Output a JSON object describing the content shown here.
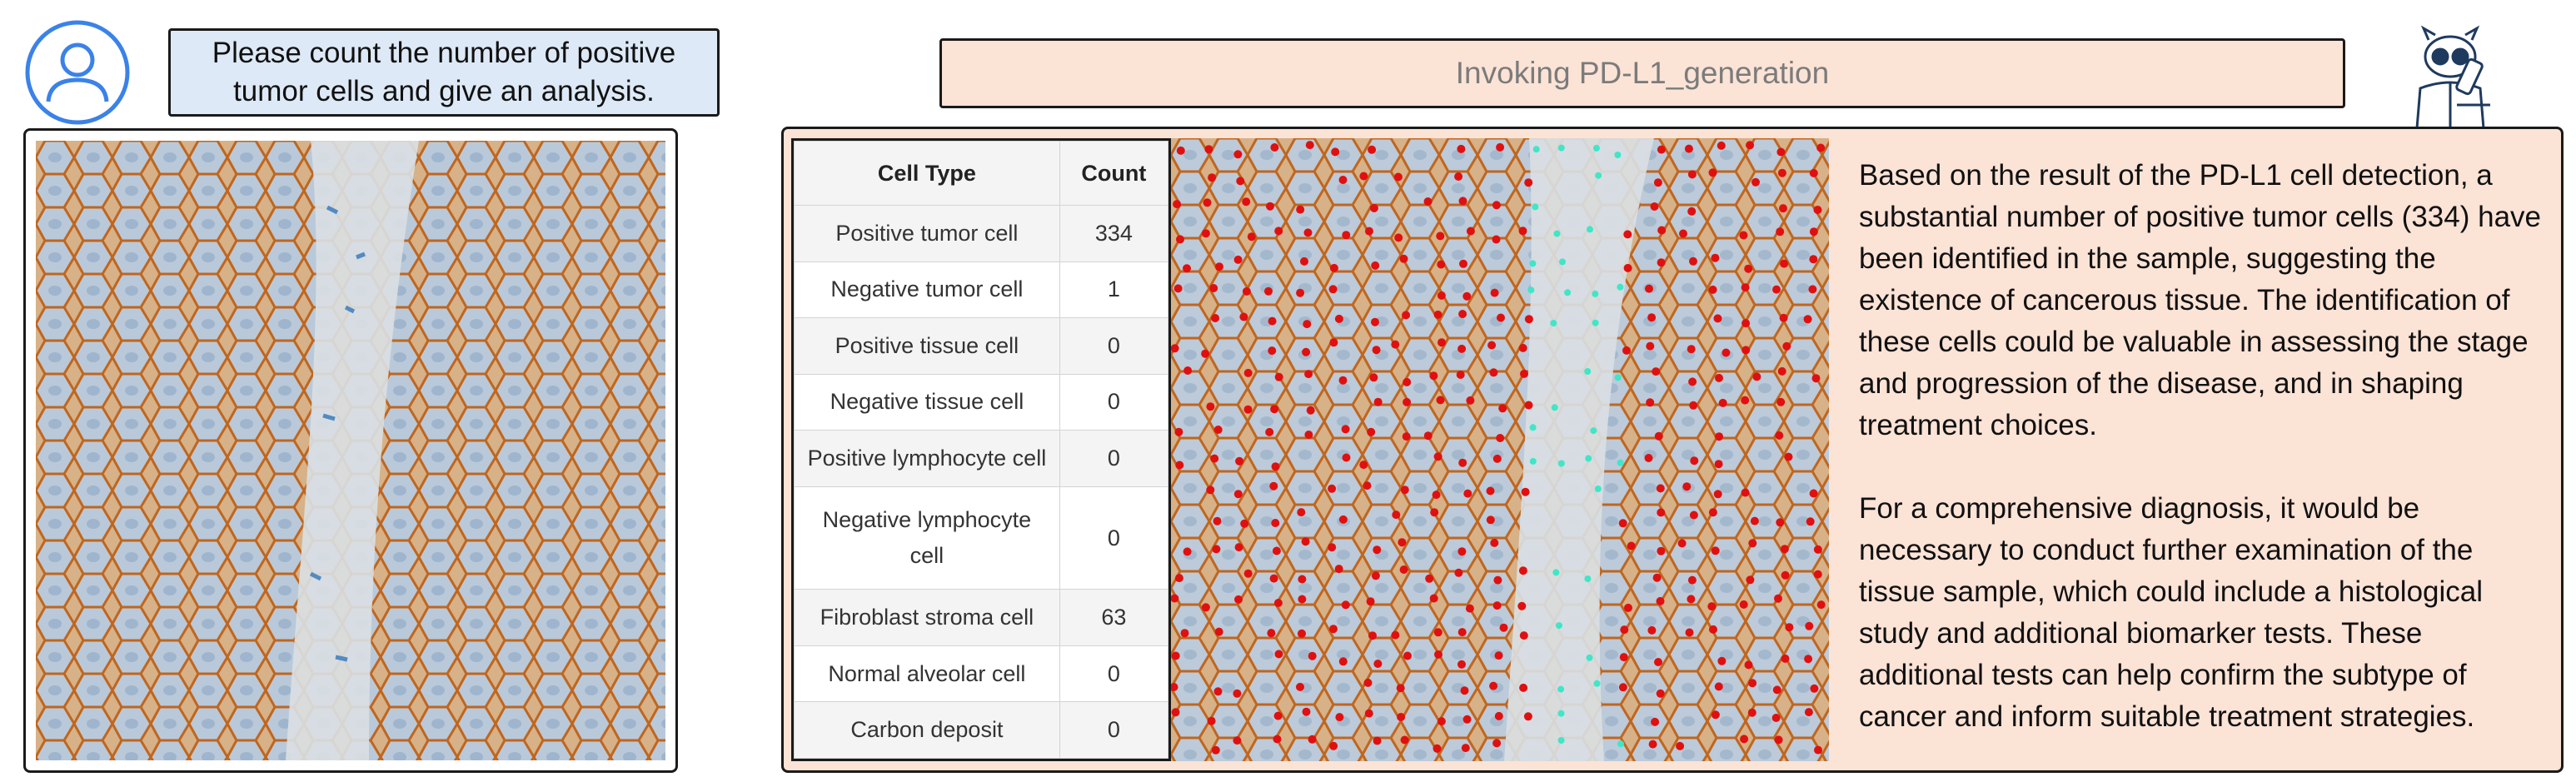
{
  "user": {
    "prompt": "Please count the number of positive\ntumor cells and give an analysis."
  },
  "tool": {
    "banner": "Invoking PD-L1_generation"
  },
  "table": {
    "headers": [
      "Cell Type",
      "Count"
    ],
    "rows": [
      {
        "type": "Positive tumor cell",
        "count": "334"
      },
      {
        "type": "Negative tumor cell",
        "count": "1"
      },
      {
        "type": "Positive tissue cell",
        "count": "0"
      },
      {
        "type": "Negative tissue cell",
        "count": "0"
      },
      {
        "type": "Positive lymphocyte cell",
        "count": "0"
      },
      {
        "type": "Negative lymphocyte cell",
        "count": "0"
      },
      {
        "type": "Fibroblast stroma cell",
        "count": "63"
      },
      {
        "type": "Normal alveolar cell",
        "count": "0"
      },
      {
        "type": "Carbon deposit",
        "count": "0"
      }
    ]
  },
  "analysis": {
    "paragraph1": "Based on the result of the PD-L1 cell detection, a substantial number of positive tumor cells (334) have been identified in the sample, suggesting the existence of cancerous tissue. The identification of these cells could be valuable in assessing the stage and progression of the disease, and in shaping treatment choices.",
    "paragraph2": "For a comprehensive diagnosis, it would be necessary to conduct further examination of the tissue sample, which could include a histological study and additional biomarker tests. These additional tests can help confirm the subtype of cancer and inform suitable treatment strategies."
  },
  "colors": {
    "user_bubble": "#dde9f6",
    "assistant_panel": "#fbe3d6",
    "positive_marker": "#e01010",
    "stroma_marker": "#3fe6c8",
    "stain_brown": "#c0661f",
    "stain_blue": "#a8c6e4"
  },
  "icons": {
    "user": "user-avatar-icon",
    "assistant": "robot-scientist-icon"
  }
}
